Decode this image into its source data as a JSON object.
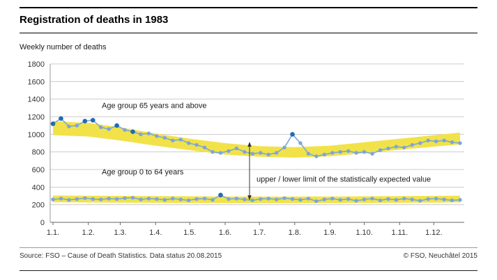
{
  "header": {
    "title": "Registration of deaths in 1983"
  },
  "chart_data": {
    "type": "line",
    "title": "Registration of deaths in 1983",
    "ylabel": "Weekly number of deaths",
    "xlabel": "",
    "ylim": [
      0,
      1800
    ],
    "ytick_step": 200,
    "grid": true,
    "legend_position": "inline-annotations",
    "weeks": 52,
    "x_month_labels": [
      "1.1.",
      "1.2.",
      "1.3.",
      "1.4.",
      "1.5.",
      "1.6.",
      "1.7.",
      "1.8.",
      "1.9.",
      "1.10.",
      "1.11.",
      "1.12."
    ],
    "band_x_weeks": [
      0,
      4.43,
      8.43,
      12.86,
      17.14,
      21.57,
      25.86,
      30.29,
      34.71,
      39,
      43.43,
      47.71,
      51
    ],
    "band_label": "upper / lower limit of the statistically expected value",
    "series": [
      {
        "name": "Age group 65 years and above",
        "values": [
          1120,
          1180,
          1090,
          1100,
          1150,
          1160,
          1080,
          1060,
          1100,
          1050,
          1030,
          1000,
          1010,
          980,
          960,
          930,
          940,
          900,
          880,
          850,
          800,
          790,
          810,
          840,
          800,
          780,
          790,
          770,
          790,
          850,
          1000,
          900,
          780,
          750,
          770,
          790,
          800,
          810,
          790,
          800,
          780,
          820,
          840,
          860,
          850,
          880,
          900,
          930,
          920,
          930,
          910,
          900
        ],
        "outlier_weeks": [
          0,
          1,
          4,
          5,
          8,
          10,
          30
        ],
        "band_upper": [
          1150,
          1130,
          1080,
          1010,
          950,
          900,
          865,
          855,
          870,
          910,
          950,
          990,
          1020
        ],
        "band_lower": [
          990,
          975,
          930,
          870,
          820,
          770,
          745,
          735,
          750,
          785,
          825,
          860,
          885
        ]
      },
      {
        "name": "Age group 0 to 64 years",
        "values": [
          260,
          270,
          255,
          265,
          275,
          265,
          260,
          270,
          265,
          275,
          280,
          260,
          270,
          265,
          255,
          270,
          260,
          250,
          265,
          270,
          255,
          310,
          265,
          270,
          260,
          250,
          265,
          270,
          260,
          275,
          265,
          255,
          270,
          240,
          260,
          270,
          255,
          265,
          245,
          260,
          270,
          250,
          265,
          255,
          270,
          260,
          245,
          265,
          270,
          260,
          250,
          255
        ],
        "outlier_weeks": [
          21
        ],
        "band_upper": [
          305,
          302,
          300,
          298,
          296,
          294,
          293,
          293,
          294,
          296,
          298,
          300,
          302
        ],
        "band_lower": [
          228,
          226,
          224,
          222,
          220,
          218,
          217,
          217,
          218,
          220,
          222,
          224,
          226
        ]
      }
    ],
    "colors": {
      "line": "#7ba7d7",
      "outlier": "#1f6cb4",
      "band": "#f2e24a",
      "grid": "#cccccc",
      "axis": "#666666"
    }
  },
  "footer": {
    "source": "Source: FSO – Cause of Death Statistics. Data status 20.08.2015",
    "copyright": "© FSO, Neuchâtel 2015"
  }
}
